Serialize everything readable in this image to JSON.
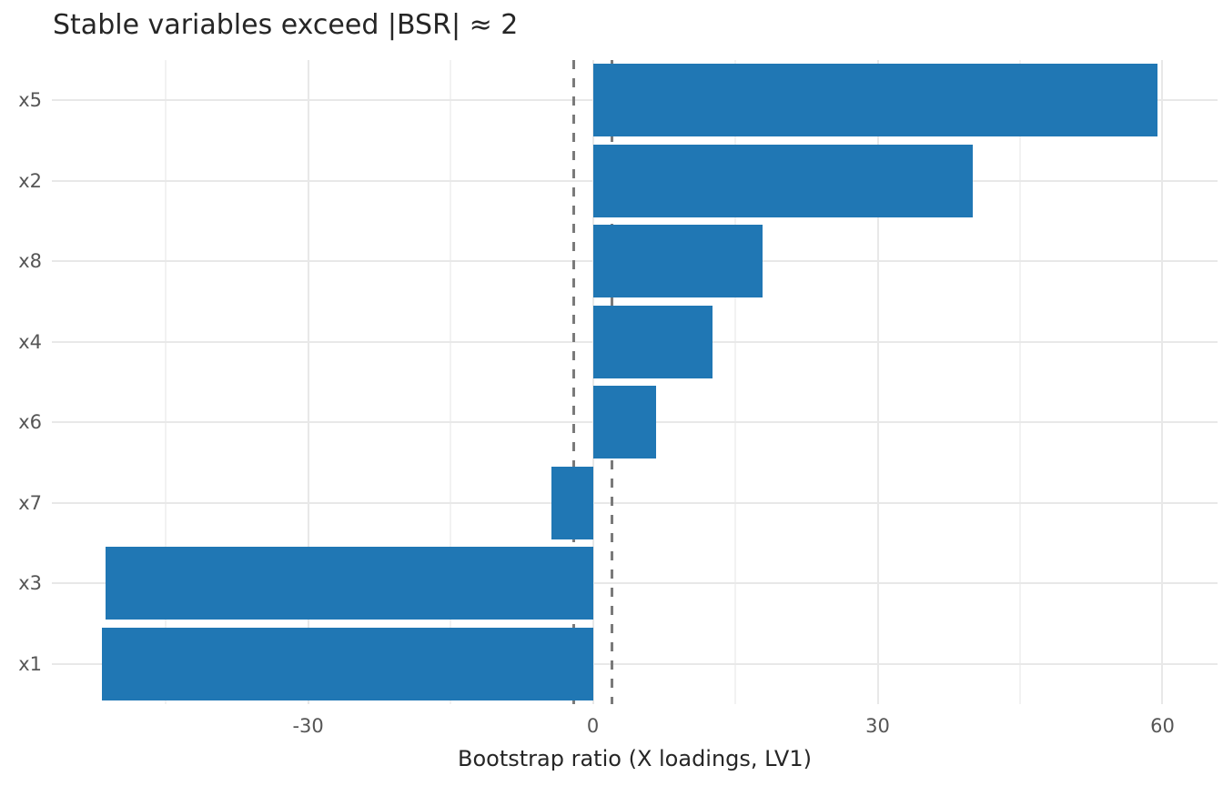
{
  "chart_data": {
    "type": "bar",
    "orientation": "horizontal",
    "title": "Stable variables exceed |BSR| ≈ 2",
    "xlabel": "Bootstrap ratio (X loadings, LV1)",
    "ylabel": "",
    "categories": [
      "x5",
      "x2",
      "x8",
      "x4",
      "x6",
      "x7",
      "x3",
      "x1"
    ],
    "values": [
      59.5,
      40.0,
      17.9,
      12.6,
      6.7,
      -4.4,
      -51.3,
      -51.7
    ],
    "xlim": [
      -57.0,
      65.8
    ],
    "x_major_ticks": [
      -30,
      0,
      30,
      60
    ],
    "x_minor_gridlines": [
      -45,
      -15,
      15,
      45
    ],
    "reference_lines": [
      {
        "x": -2,
        "style": "dashed"
      },
      {
        "x": 2,
        "style": "dashed"
      }
    ],
    "grid": true,
    "legend": false,
    "bar_color": "#2077b4"
  },
  "style": {
    "bar_color": "#2077b4",
    "grid_major_color": "#e8e8e8",
    "grid_minor_color": "#f2f2f2",
    "ref_line_color": "#7a7a7a",
    "tick_label_color": "#565656",
    "title_color": "#262626",
    "background": "#ffffff"
  }
}
